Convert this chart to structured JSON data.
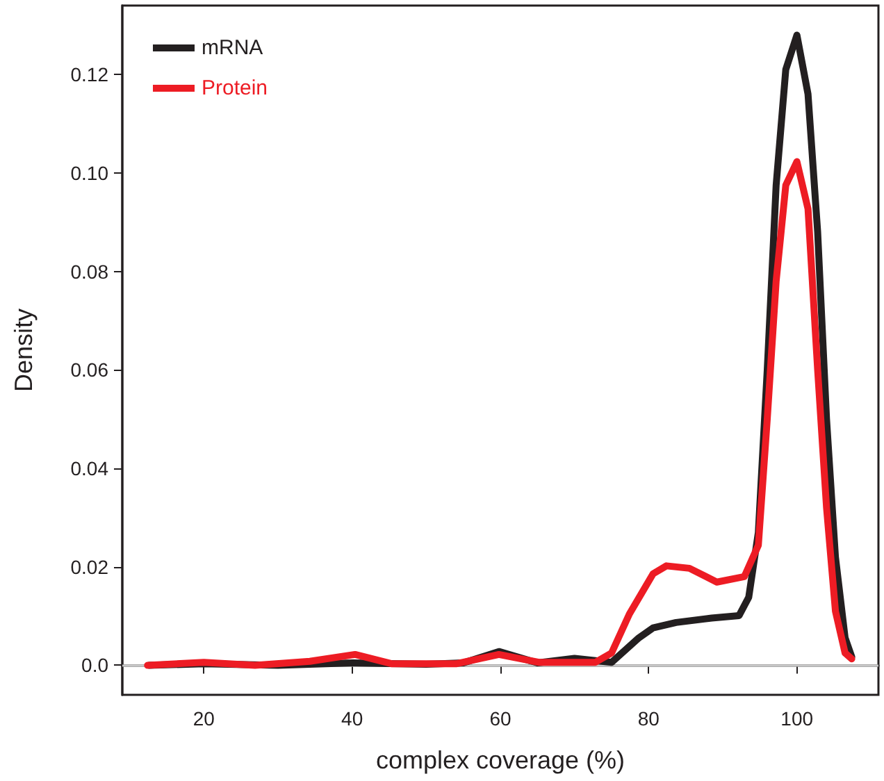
{
  "chart_data": {
    "type": "line",
    "xlabel": "complex coverage (%)",
    "ylabel": "Density",
    "xlim": [
      9,
      111
    ],
    "ylim": [
      -0.006,
      0.134
    ],
    "xticks": [
      20,
      40,
      60,
      80,
      100
    ],
    "yticks": [
      {
        "value": 0,
        "label": "0.0"
      },
      0.02,
      0.04,
      0.06,
      0.08,
      {
        "value": 0.1,
        "label": "0.10"
      },
      0.12
    ],
    "series": [
      {
        "name": "mRNA",
        "color": "#231f20",
        "x": [
          12.6,
          20,
          30,
          40,
          50,
          55,
          59.8,
          65,
          70,
          75,
          78.7,
          80.6,
          83.7,
          88.5,
          92.2,
          93.5,
          94.8,
          96,
          97.2,
          98.5,
          100,
          101.5,
          102.8,
          104,
          105.2,
          106.5,
          107.4
        ],
        "values": [
          0,
          0.0003,
          0,
          0.0005,
          0.0002,
          0.0005,
          0.0028,
          0.0005,
          0.0014,
          0.0006,
          0.0056,
          0.0076,
          0.0087,
          0.0096,
          0.0101,
          0.0138,
          0.027,
          0.06,
          0.0975,
          0.121,
          0.128,
          0.116,
          0.088,
          0.05,
          0.022,
          0.0056,
          0.0017
        ]
      },
      {
        "name": "Protein",
        "color": "#ed1c24",
        "x": [
          12.4,
          20,
          26.9,
          34.3,
          40.4,
          45.4,
          54,
          59.8,
          65.2,
          72.8,
          75,
          77.4,
          80.6,
          82.4,
          85.5,
          89.2,
          92.9,
          94.8,
          96,
          97.2,
          98.5,
          100,
          101.5,
          102.8,
          104,
          105.2,
          106.5,
          107.4
        ],
        "values": [
          0,
          0.0006,
          0,
          0.0008,
          0.0022,
          0.0003,
          0.0003,
          0.0022,
          0.0006,
          0.0006,
          0.0025,
          0.0104,
          0.0186,
          0.0202,
          0.0197,
          0.0169,
          0.018,
          0.0244,
          0.05,
          0.078,
          0.0975,
          0.1023,
          0.0927,
          0.06,
          0.032,
          0.011,
          0.0025,
          0.0013
        ]
      }
    ],
    "ref_lines": [
      {
        "axis": "y",
        "value": 0,
        "color": "#c8c8c8"
      }
    ],
    "legend": "top left",
    "grid": false,
    "marker": "none",
    "line_style": "solid"
  }
}
